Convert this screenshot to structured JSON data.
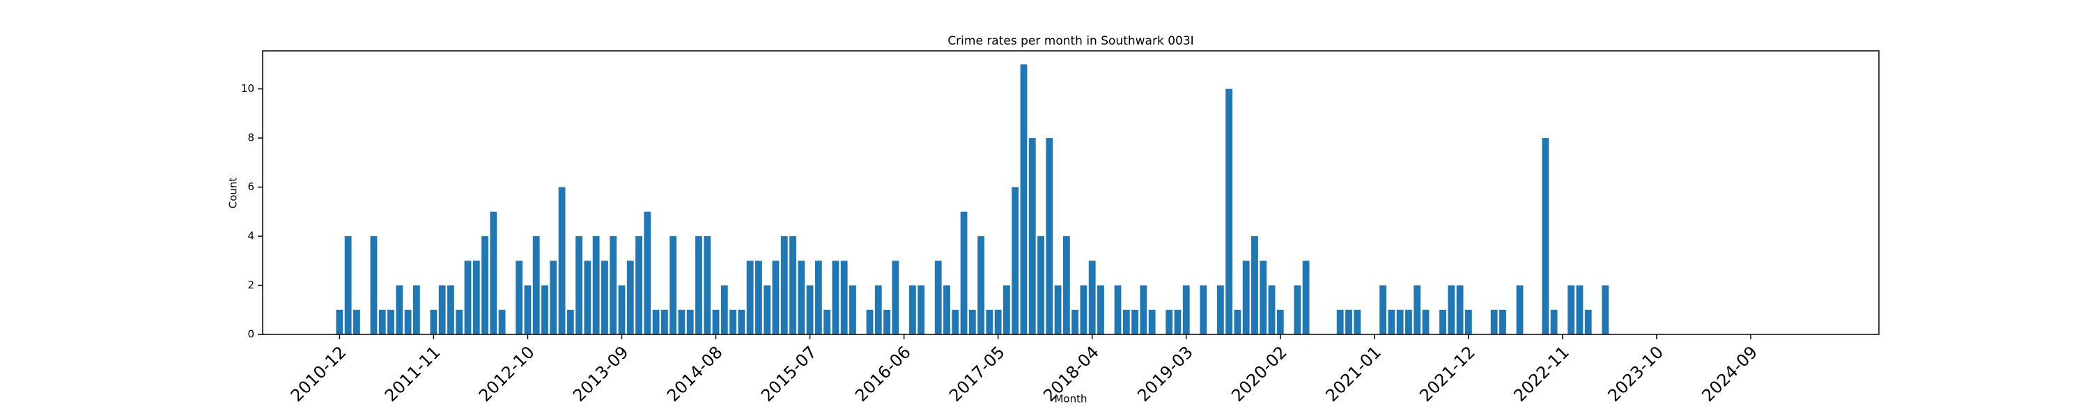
{
  "chart_data": {
    "type": "bar",
    "title": "Crime rates per month in Southwark 003I",
    "x_label": "Month",
    "y_label": "Count",
    "color": "#1f77b4",
    "categories": [
      "2010-12",
      null,
      null,
      null,
      null,
      null,
      null,
      null,
      null,
      null,
      null,
      "2011-11",
      null,
      null,
      null,
      null,
      null,
      null,
      null,
      null,
      null,
      null,
      "2012-10",
      null,
      null,
      null,
      null,
      null,
      null,
      null,
      null,
      null,
      null,
      "2013-09",
      null,
      null,
      null,
      null,
      null,
      null,
      null,
      null,
      null,
      null,
      "2014-08",
      null,
      null,
      null,
      null,
      null,
      null,
      null,
      null,
      null,
      null,
      "2015-07",
      null,
      null,
      null,
      null,
      null,
      null,
      null,
      null,
      null,
      null,
      "2016-06",
      null,
      null,
      null,
      null,
      null,
      null,
      null,
      null,
      null,
      null,
      "2017-05",
      null,
      null,
      null,
      null,
      null,
      null,
      null,
      null,
      null,
      null,
      "2018-04",
      null,
      null,
      null,
      null,
      null,
      null,
      null,
      null,
      null,
      null,
      "2019-03",
      null,
      null,
      null,
      null,
      null,
      null,
      null,
      null,
      null,
      null,
      "2020-02",
      null,
      null,
      null,
      null,
      null,
      null,
      null,
      null,
      null,
      null,
      "2021-01",
      null,
      null,
      null,
      null,
      null,
      null,
      null,
      null,
      null,
      null,
      "2021-12",
      null,
      null,
      null,
      null,
      null,
      null,
      null,
      null,
      null,
      null,
      "2022-11",
      null,
      null,
      null,
      null,
      null,
      null,
      null,
      null,
      null,
      null,
      "2023-10",
      null,
      null,
      null,
      null,
      null,
      null,
      null,
      null,
      null,
      null,
      "2024-09",
      null,
      null,
      null,
      null,
      null,
      null
    ],
    "values": [
      1,
      4,
      1,
      0,
      4,
      1,
      1,
      2,
      1,
      2,
      0,
      1,
      2,
      2,
      1,
      3,
      3,
      4,
      5,
      1,
      0,
      3,
      2,
      4,
      2,
      3,
      6,
      1,
      4,
      3,
      4,
      3,
      4,
      2,
      3,
      4,
      5,
      1,
      1,
      4,
      1,
      1,
      4,
      4,
      1,
      2,
      1,
      1,
      3,
      3,
      2,
      3,
      4,
      4,
      3,
      2,
      3,
      1,
      3,
      3,
      2,
      0,
      1,
      2,
      1,
      3,
      0,
      2,
      2,
      0,
      3,
      2,
      1,
      5,
      1,
      4,
      1,
      1,
      2,
      6,
      11,
      8,
      4,
      8,
      2,
      4,
      1,
      2,
      3,
      2,
      0,
      2,
      1,
      1,
      2,
      1,
      0,
      1,
      1,
      2,
      0,
      2,
      0,
      2,
      10,
      1,
      3,
      4,
      3,
      2,
      1,
      0,
      2,
      3,
      0,
      0,
      0,
      1,
      1,
      1,
      0,
      0,
      2,
      1,
      1,
      1,
      2,
      1,
      0,
      1,
      2,
      2,
      1,
      0,
      0,
      1,
      1,
      0,
      2,
      0,
      0,
      8,
      1,
      0,
      2,
      2,
      1,
      0,
      2,
      0,
      0,
      0,
      0,
      0,
      0,
      0,
      0,
      0,
      0,
      0,
      0,
      0,
      0,
      0,
      0,
      0,
      0,
      0,
      0,
      0,
      0,
      0
    ],
    "ylim": [
      0,
      11.55
    ],
    "yticks": [
      0,
      2,
      4,
      6,
      8,
      10
    ]
  }
}
